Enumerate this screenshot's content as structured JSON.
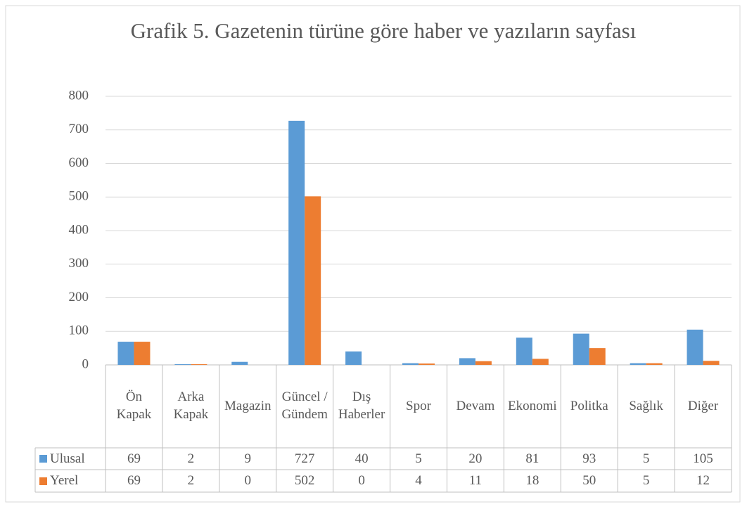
{
  "chart_data": {
    "type": "bar",
    "title": "Grafik 5. Gazetenin türüne göre haber ve yazıların sayfası",
    "categories": [
      "Ön Kapak",
      "Arka Kapak",
      "Magazin",
      "Güncel / Gündem",
      "Dış Haberler",
      "Spor",
      "Devam",
      "Ekonomi",
      "Politka",
      "Sağlık",
      "Diğer"
    ],
    "series": [
      {
        "name": "Ulusal",
        "color": "#5b9bd5",
        "values": [
          69,
          2,
          9,
          727,
          40,
          5,
          20,
          81,
          93,
          5,
          105
        ]
      },
      {
        "name": "Yerel",
        "color": "#ed7d31",
        "values": [
          69,
          2,
          0,
          502,
          0,
          4,
          11,
          18,
          50,
          5,
          12
        ]
      }
    ],
    "ylim": [
      0,
      800
    ],
    "yticks": [
      0,
      100,
      200,
      300,
      400,
      500,
      600,
      700,
      800
    ],
    "grid": true
  }
}
